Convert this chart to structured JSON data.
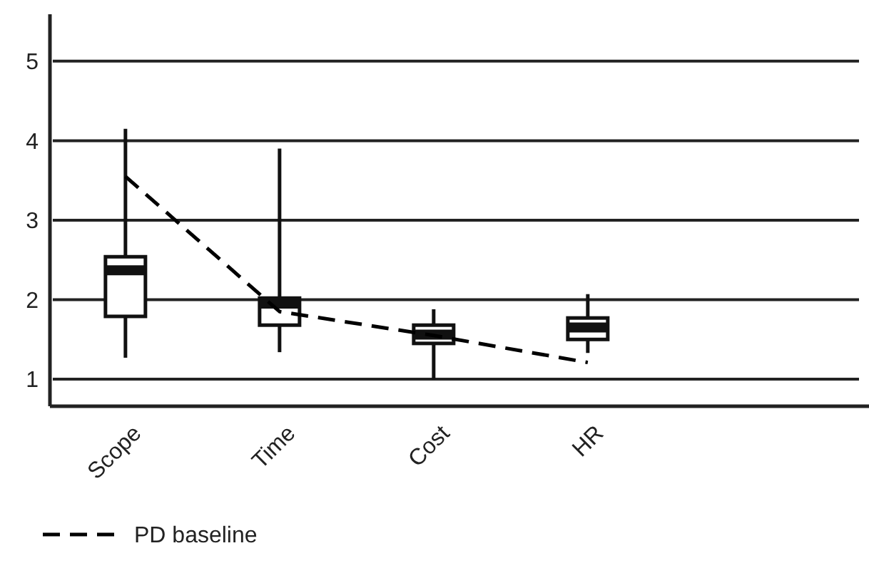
{
  "chart_data": {
    "type": "box",
    "categories": [
      "Scope",
      "Time",
      "Cost",
      "HR"
    ],
    "boxes": [
      {
        "low": 1.27,
        "q1": 1.79,
        "median": 2.37,
        "q3": 2.54,
        "high": 4.15
      },
      {
        "low": 1.34,
        "q1": 1.68,
        "median": 1.95,
        "q3": 2.02,
        "high": 3.9
      },
      {
        "low": 1.0,
        "q1": 1.45,
        "median": 1.56,
        "q3": 1.68,
        "high": 1.88
      },
      {
        "low": 1.33,
        "q1": 1.5,
        "median": 1.65,
        "q3": 1.77,
        "high": 2.07
      }
    ],
    "series": [
      {
        "name": "PD baseline",
        "type": "line",
        "color": "#000000",
        "line_style": "dashed",
        "values": [
          3.55,
          1.85,
          1.55,
          1.21
        ]
      }
    ],
    "ylim": [
      0.66,
      5.59
    ],
    "yticks": [
      1,
      2,
      3,
      4,
      5
    ],
    "grid": "y",
    "legend": "bottom left"
  }
}
